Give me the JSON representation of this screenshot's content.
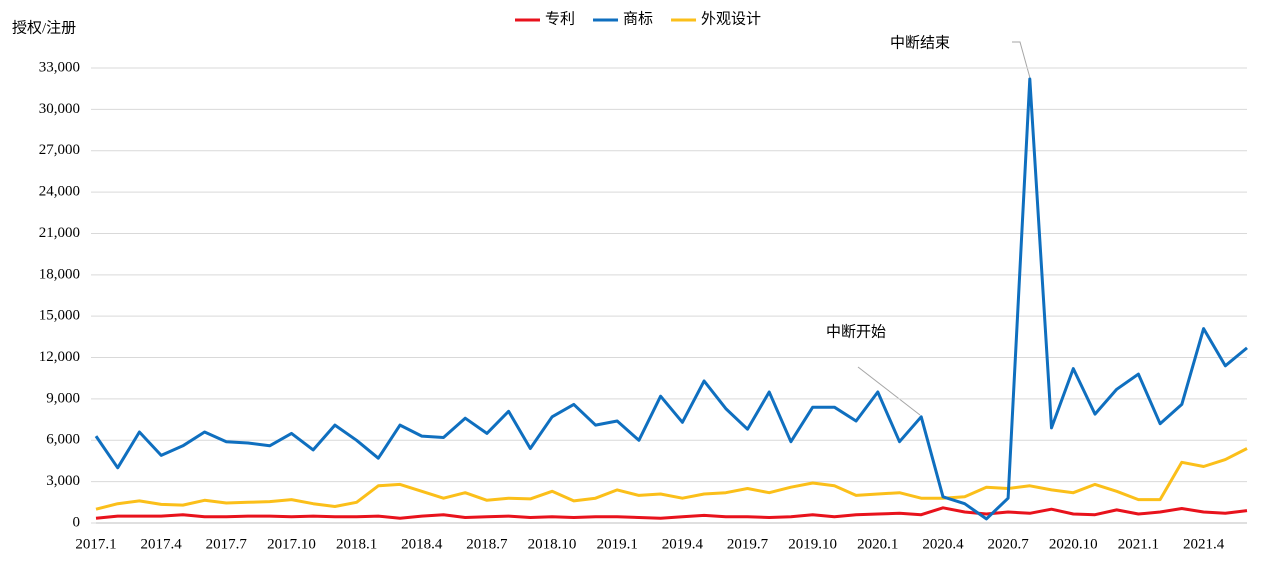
{
  "chart_data": {
    "type": "line",
    "y_label": "授权/注册",
    "categories": [
      "2017.1",
      null,
      null,
      "2017.4",
      null,
      null,
      "2017.7",
      null,
      null,
      "2017.10",
      null,
      null,
      "2018.1",
      null,
      null,
      "2018.4",
      null,
      null,
      "2018.7",
      null,
      null,
      "2018.10",
      null,
      null,
      "2019.1",
      null,
      null,
      "2019.4",
      null,
      null,
      "2019.7",
      null,
      null,
      "2019.10",
      null,
      null,
      "2020.1",
      null,
      null,
      "2020.4",
      null,
      null,
      "2020.7",
      null,
      null,
      "2020.10",
      null,
      null,
      "2021.1",
      null,
      null,
      "2021.4",
      null,
      null
    ],
    "series": [
      {
        "name": "专利",
        "color": "#e8121c",
        "values": [
          350,
          500,
          500,
          500,
          600,
          450,
          450,
          500,
          500,
          450,
          500,
          450,
          450,
          500,
          350,
          500,
          600,
          400,
          450,
          500,
          400,
          450,
          400,
          450,
          450,
          400,
          350,
          450,
          550,
          450,
          450,
          400,
          450,
          600,
          450,
          600,
          650,
          700,
          600,
          1100,
          800,
          650,
          800,
          700,
          1000,
          650,
          600,
          950,
          650,
          800,
          1050,
          800,
          700,
          900
        ]
      },
      {
        "name": "商标",
        "color": "#0f6fbf",
        "values": [
          6300,
          4000,
          6600,
          4900,
          5600,
          6600,
          5900,
          5800,
          5600,
          6500,
          5300,
          7100,
          6000,
          4700,
          7100,
          6300,
          6200,
          7600,
          6500,
          8100,
          5400,
          7700,
          8600,
          7100,
          7400,
          6000,
          9200,
          7300,
          10300,
          8300,
          6800,
          9500,
          5900,
          8400,
          8400,
          7400,
          9500,
          5900,
          7700,
          1900,
          1400,
          300,
          1800,
          32200,
          6900,
          11200,
          7900,
          9700,
          10800,
          7200,
          8600,
          14100,
          11400,
          12700
        ]
      },
      {
        "name": "外观设计",
        "color": "#fbbf1a",
        "values": [
          1000,
          1400,
          1600,
          1350,
          1300,
          1650,
          1450,
          1500,
          1550,
          1700,
          1400,
          1200,
          1500,
          2700,
          2800,
          2300,
          1800,
          2200,
          1650,
          1800,
          1750,
          2300,
          1600,
          1800,
          2400,
          2000,
          2100,
          1800,
          2100,
          2200,
          2500,
          2200,
          2600,
          2900,
          2700,
          2000,
          2100,
          2200,
          1800,
          1800,
          1900,
          2600,
          2500,
          2700,
          2400,
          2200,
          2800,
          2300,
          1700,
          1700,
          4400,
          4100,
          4600,
          5400
        ]
      }
    ],
    "ylim": [
      0,
      33000
    ],
    "yticks": [
      0,
      {
        "value": 3000,
        "label": "3,000"
      },
      {
        "value": 6000,
        "label": "6,000"
      },
      {
        "value": 9000,
        "label": "9,000"
      },
      {
        "value": 12000,
        "label": "12,000"
      },
      {
        "value": 15000,
        "label": "15,000"
      },
      {
        "value": 18000,
        "label": "18,000"
      },
      {
        "value": 21000,
        "label": "21,000"
      },
      {
        "value": 24000,
        "label": "24,000"
      },
      {
        "value": 27000,
        "label": "27,000"
      },
      {
        "value": 30000,
        "label": "30,000"
      },
      {
        "value": 33000,
        "label": "33,000"
      }
    ],
    "grid": true,
    "legend": "top",
    "annotations": [
      "中断开始",
      "中断结束"
    ]
  }
}
